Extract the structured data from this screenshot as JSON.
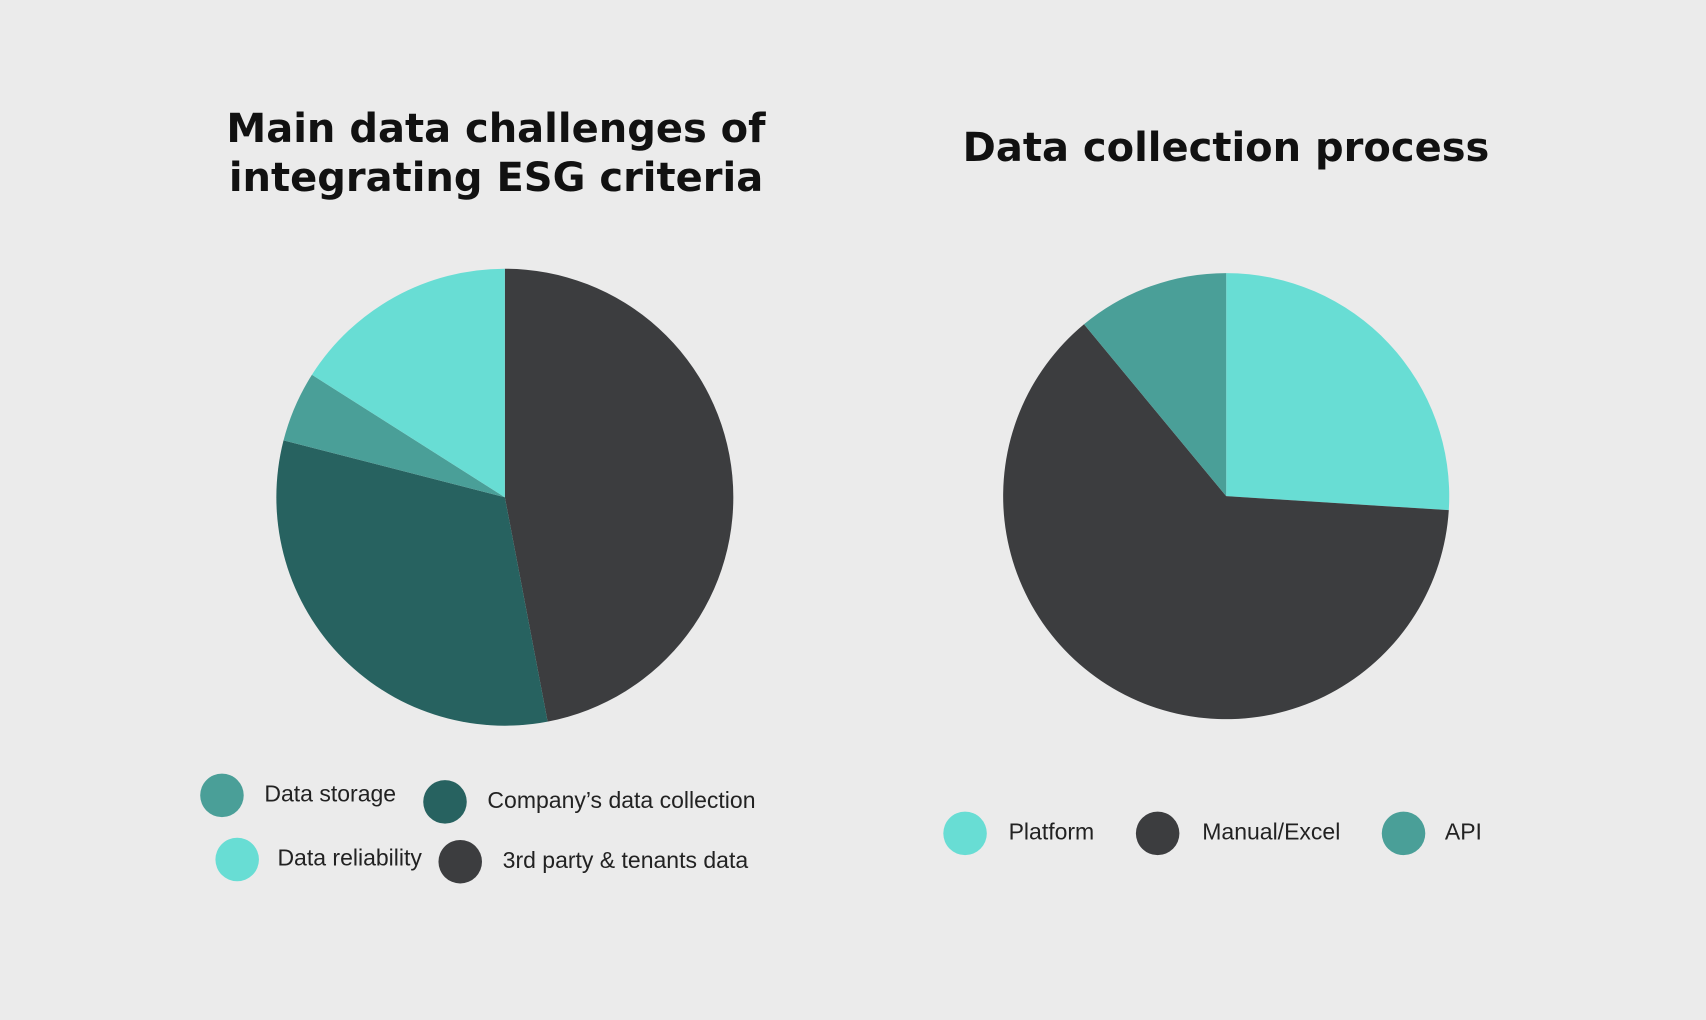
{
  "chart_data": [
    {
      "type": "pie",
      "title": "Main data challenges of integrating ESG criteria",
      "categories": [
        "3rd party & tenants data",
        "Company’s data collection",
        "Data storage",
        "Data reliability"
      ],
      "values": [
        47,
        32,
        5,
        16
      ],
      "colors": [
        "#3c3d3f",
        "#276260",
        "#4a9f98",
        "#68ddd4"
      ]
    },
    {
      "type": "pie",
      "title": "Data collection process",
      "categories": [
        "Platform",
        "Manual/Excel",
        "API"
      ],
      "values": [
        26,
        63,
        11
      ],
      "colors": [
        "#68ddd4",
        "#3c3d3f",
        "#4a9f98"
      ]
    }
  ]
}
